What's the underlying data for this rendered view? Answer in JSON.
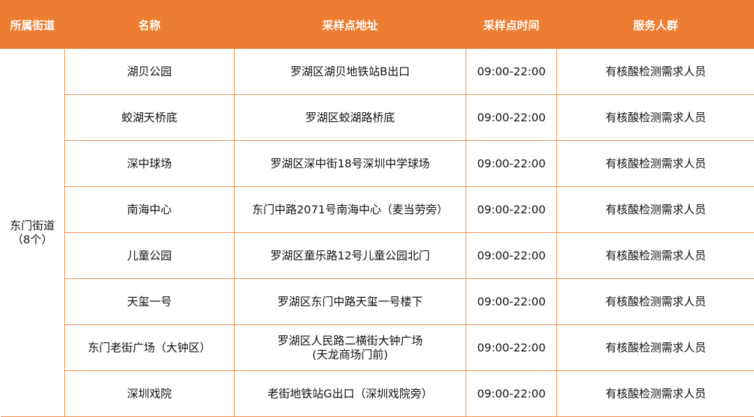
{
  "colors": {
    "header_bg": "#ED7D31",
    "border": "#EE8C4A"
  },
  "headers": [
    "所属街道",
    "名称",
    "采样点地址",
    "采样点时间",
    "服务人群"
  ],
  "district": {
    "name": "东门街道",
    "count": "（8个）"
  },
  "rows": [
    {
      "name": "湖贝公园",
      "address": "罗湖区湖贝地铁站B出口",
      "address2": "",
      "time": "09:00-22:00",
      "group": "有核酸检测需求人员"
    },
    {
      "name": "蛟湖天桥底",
      "address": "罗湖区蛟湖路桥底",
      "address2": "",
      "time": "09:00-22:00",
      "group": "有核酸检测需求人员"
    },
    {
      "name": "深中球场",
      "address": "罗湖区深中街18号深圳中学球场",
      "address2": "",
      "time": "09:00-22:00",
      "group": "有核酸检测需求人员"
    },
    {
      "name": "南海中心",
      "address": "东门中路2071号南海中心（麦当劳旁）",
      "address2": "",
      "time": "09:00-22:00",
      "group": "有核酸检测需求人员"
    },
    {
      "name": "儿童公园",
      "address": "罗湖区童乐路12号儿童公园北门",
      "address2": "",
      "time": "09:00-22:00",
      "group": "有核酸检测需求人员"
    },
    {
      "name": "天玺一号",
      "address": "罗湖区东门中路天玺一号楼下",
      "address2": "",
      "time": "09:00-22:00",
      "group": "有核酸检测需求人员"
    },
    {
      "name": "东门老街广场（大钟区）",
      "address": "罗湖区人民路二横街大钟广场",
      "address2": "(天龙商场门前)",
      "time": "09:00-22:00",
      "group": "有核酸检测需求人员"
    },
    {
      "name": "深圳戏院",
      "address": "老街地铁站G出口（深圳戏院旁）",
      "address2": "",
      "time": "09:00-22:00",
      "group": "有核酸检测需求人员"
    }
  ]
}
